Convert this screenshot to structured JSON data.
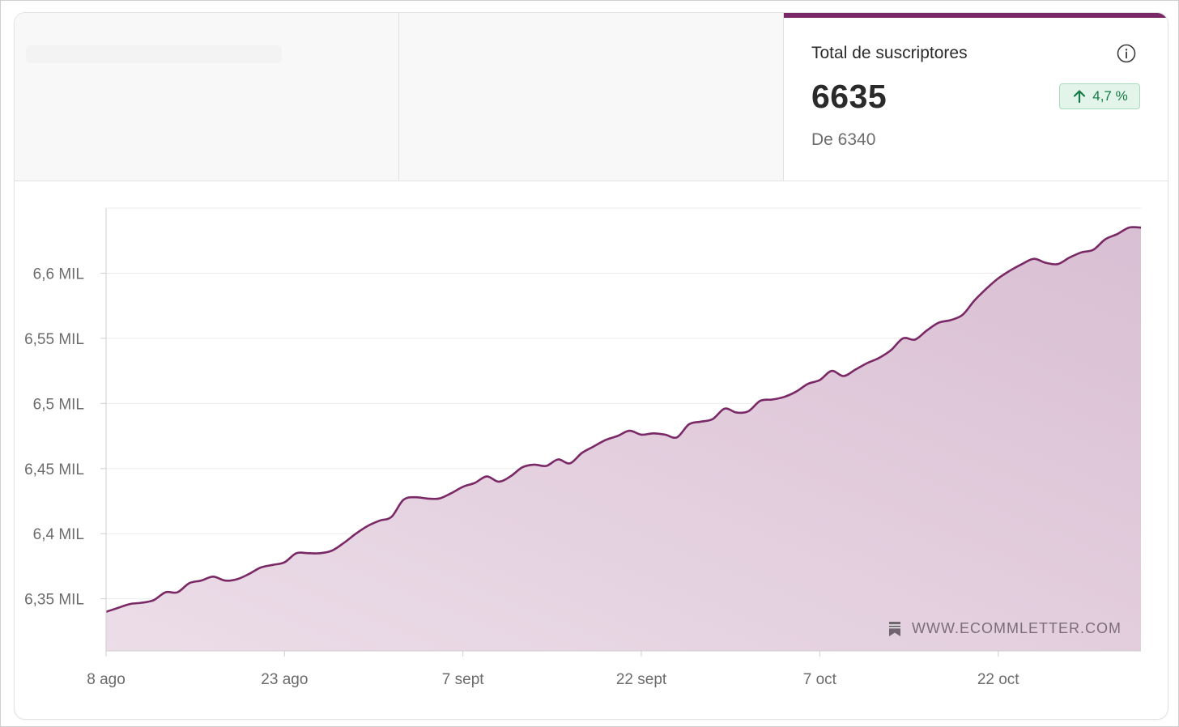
{
  "metric": {
    "label": "Total de suscriptores",
    "value": "6635",
    "change": "4,7 %",
    "comparison": "De 6340",
    "info_icon": "info-circle-icon",
    "trend_icon": "arrow-up-icon"
  },
  "watermark": {
    "text": "WWW.ECOMMLETTER.COM",
    "icon": "bookmark-icon"
  },
  "colors": {
    "accent": "#7a2866",
    "area_fill": "#e6d3e1",
    "positive": "#157a45",
    "positive_bg": "#e3f5ea"
  },
  "chart_data": {
    "type": "area",
    "title": "",
    "xlabel": "",
    "ylabel": "",
    "x_ticks": [
      "8 ago",
      "23 ago",
      "7 sept",
      "22 sept",
      "7 oct",
      "22 oct"
    ],
    "y_ticks": [
      {
        "value": 6350,
        "label": "6,35 MIL"
      },
      {
        "value": 6400,
        "label": "6,4 MIL"
      },
      {
        "value": 6450,
        "label": "6,45 MIL"
      },
      {
        "value": 6500,
        "label": "6,5 MIL"
      },
      {
        "value": 6550,
        "label": "6,55 MIL"
      },
      {
        "value": 6600,
        "label": "6,6 MIL"
      }
    ],
    "ylim": [
      6310,
      6650
    ],
    "xlim": [
      "2023-08-08",
      "2023-10-31"
    ],
    "grid": true,
    "series": [
      {
        "points": [
          [
            "2023-08-08",
            6340
          ],
          [
            "2023-08-09",
            6343
          ],
          [
            "2023-08-10",
            6346
          ],
          [
            "2023-08-11",
            6347
          ],
          [
            "2023-08-12",
            6349
          ],
          [
            "2023-08-13",
            6355
          ],
          [
            "2023-08-14",
            6355
          ],
          [
            "2023-08-15",
            6362
          ],
          [
            "2023-08-16",
            6364
          ],
          [
            "2023-08-17",
            6367
          ],
          [
            "2023-08-18",
            6364
          ],
          [
            "2023-08-19",
            6365
          ],
          [
            "2023-08-20",
            6369
          ],
          [
            "2023-08-21",
            6374
          ],
          [
            "2023-08-22",
            6376
          ],
          [
            "2023-08-23",
            6378
          ],
          [
            "2023-08-24",
            6385
          ],
          [
            "2023-08-25",
            6385
          ],
          [
            "2023-08-26",
            6385
          ],
          [
            "2023-08-27",
            6387
          ],
          [
            "2023-08-28",
            6393
          ],
          [
            "2023-08-29",
            6400
          ],
          [
            "2023-08-30",
            6406
          ],
          [
            "2023-08-31",
            6410
          ],
          [
            "2023-09-01",
            6413
          ],
          [
            "2023-09-02",
            6426
          ],
          [
            "2023-09-03",
            6428
          ],
          [
            "2023-09-04",
            6427
          ],
          [
            "2023-09-05",
            6427
          ],
          [
            "2023-09-06",
            6431
          ],
          [
            "2023-09-07",
            6436
          ],
          [
            "2023-09-08",
            6439
          ],
          [
            "2023-09-09",
            6444
          ],
          [
            "2023-09-10",
            6440
          ],
          [
            "2023-09-11",
            6444
          ],
          [
            "2023-09-12",
            6451
          ],
          [
            "2023-09-13",
            6453
          ],
          [
            "2023-09-14",
            6452
          ],
          [
            "2023-09-15",
            6457
          ],
          [
            "2023-09-16",
            6454
          ],
          [
            "2023-09-17",
            6462
          ],
          [
            "2023-09-18",
            6467
          ],
          [
            "2023-09-19",
            6472
          ],
          [
            "2023-09-20",
            6475
          ],
          [
            "2023-09-21",
            6479
          ],
          [
            "2023-09-22",
            6476
          ],
          [
            "2023-09-23",
            6477
          ],
          [
            "2023-09-24",
            6476
          ],
          [
            "2023-09-25",
            6474
          ],
          [
            "2023-09-26",
            6484
          ],
          [
            "2023-09-27",
            6486
          ],
          [
            "2023-09-28",
            6488
          ],
          [
            "2023-09-29",
            6496
          ],
          [
            "2023-09-30",
            6493
          ],
          [
            "2023-10-01",
            6494
          ],
          [
            "2023-10-02",
            6502
          ],
          [
            "2023-10-03",
            6503
          ],
          [
            "2023-10-04",
            6505
          ],
          [
            "2023-10-05",
            6509
          ],
          [
            "2023-10-06",
            6515
          ],
          [
            "2023-10-07",
            6518
          ],
          [
            "2023-10-08",
            6525
          ],
          [
            "2023-10-09",
            6521
          ],
          [
            "2023-10-10",
            6526
          ],
          [
            "2023-10-11",
            6531
          ],
          [
            "2023-10-12",
            6535
          ],
          [
            "2023-10-13",
            6541
          ],
          [
            "2023-10-14",
            6550
          ],
          [
            "2023-10-15",
            6549
          ],
          [
            "2023-10-16",
            6556
          ],
          [
            "2023-10-17",
            6562
          ],
          [
            "2023-10-18",
            6564
          ],
          [
            "2023-10-19",
            6568
          ],
          [
            "2023-10-20",
            6579
          ],
          [
            "2023-10-21",
            6588
          ],
          [
            "2023-10-22",
            6596
          ],
          [
            "2023-10-23",
            6602
          ],
          [
            "2023-10-24",
            6607
          ],
          [
            "2023-10-25",
            6611
          ],
          [
            "2023-10-26",
            6608
          ],
          [
            "2023-10-27",
            6607
          ],
          [
            "2023-10-28",
            6612
          ],
          [
            "2023-10-29",
            6616
          ],
          [
            "2023-10-30",
            6618
          ],
          [
            "2023-10-31",
            6626
          ],
          [
            "2023-11-01",
            6630
          ],
          [
            "2023-11-02",
            6635
          ],
          [
            "2023-11-03",
            6635
          ]
        ]
      }
    ]
  }
}
